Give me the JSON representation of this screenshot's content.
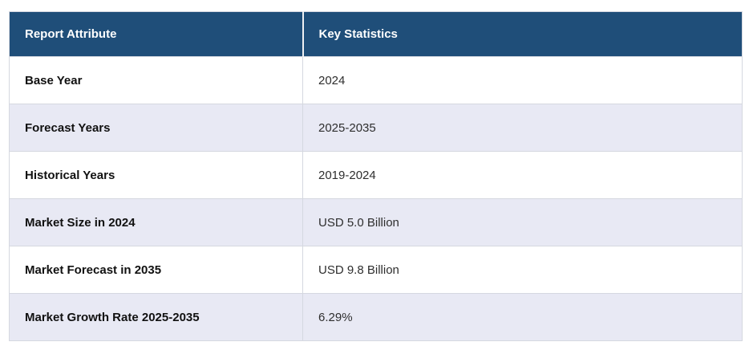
{
  "table": {
    "columns": [
      {
        "label": "Report Attribute"
      },
      {
        "label": "Key Statistics"
      }
    ],
    "rows": [
      {
        "attribute": "Base Year",
        "value": "2024"
      },
      {
        "attribute": "Forecast Years",
        "value": "2025-2035"
      },
      {
        "attribute": "Historical Years",
        "value": "2019-2024"
      },
      {
        "attribute": "Market Size in 2024",
        "value": "USD 5.0 Billion"
      },
      {
        "attribute": "Market Forecast in 2035",
        "value": "USD 9.8 Billion"
      },
      {
        "attribute": "Market Growth Rate 2025-2035",
        "value": "6.29%"
      }
    ],
    "colors": {
      "header_bg": "#1f4e79",
      "header_text": "#ffffff",
      "row_bg": "#ffffff",
      "row_alt_bg": "#e8e9f4",
      "border": "#d5d8e0"
    }
  }
}
